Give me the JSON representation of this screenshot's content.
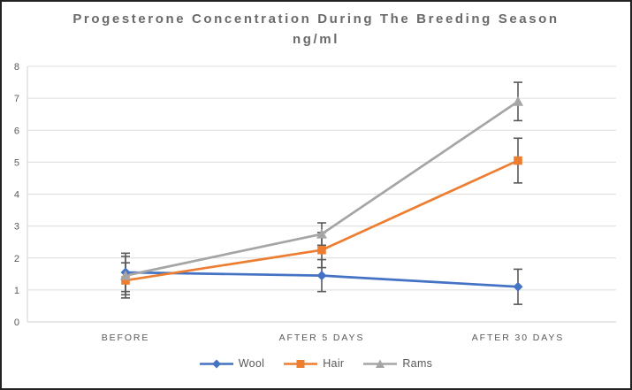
{
  "window": {
    "background_color": "#ffffff",
    "border_color": "#222222"
  },
  "chart_data": {
    "type": "line",
    "title": "Progesterone Concentration During The Breeding Season",
    "subtitle": "ng/ml",
    "categories": [
      "BEFORE",
      "AFTER 5 DAYS",
      "AFTER 30 DAYS"
    ],
    "series": [
      {
        "name": "Wool",
        "color": "#4472C4",
        "marker": "diamond",
        "values": [
          1.55,
          1.45,
          1.1
        ],
        "error_plus": [
          0.6,
          0.5,
          0.55
        ],
        "error_minus": [
          0.6,
          0.5,
          0.55
        ]
      },
      {
        "name": "Hair",
        "color": "#ED7D31",
        "marker": "square",
        "values": [
          1.3,
          2.25,
          5.05
        ],
        "error_plus": [
          0.55,
          0.55,
          0.7
        ],
        "error_minus": [
          0.55,
          0.55,
          0.7
        ]
      },
      {
        "name": "Rams",
        "color": "#A5A5A5",
        "marker": "triangle",
        "values": [
          1.45,
          2.75,
          6.9
        ],
        "error_plus": [
          0.6,
          0.35,
          0.6
        ],
        "error_minus": [
          0.6,
          0.35,
          0.6
        ]
      }
    ],
    "xlabel": "",
    "ylabel": "",
    "ylim": [
      0,
      8
    ],
    "yticks": [
      0,
      1,
      2,
      3,
      4,
      5,
      6,
      7,
      8
    ],
    "grid": "horizontal",
    "legend_position": "bottom",
    "style": {
      "gridline_color": "#DCDCDC",
      "axis_line_color": "#D2D2D2",
      "error_bar_color": "#595959",
      "axis_text_color": "#595959",
      "title_color": "#6a6a6a"
    }
  }
}
